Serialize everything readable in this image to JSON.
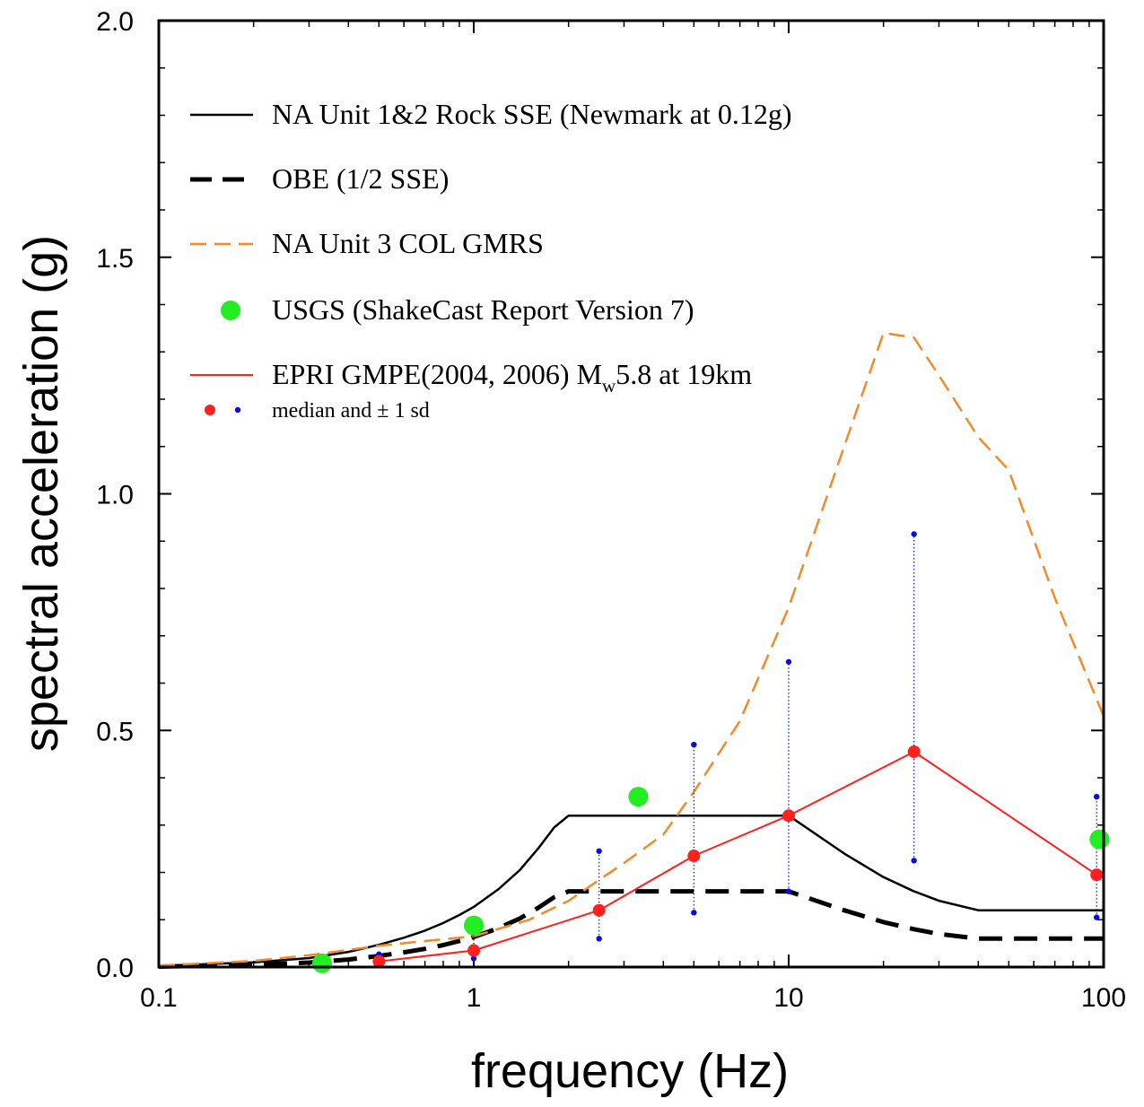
{
  "chart_data": {
    "type": "line",
    "title": "",
    "xlabel": "frequency (Hz)",
    "ylabel": "spectral acceleration (g)",
    "xscale": "log",
    "xlim": [
      0.1,
      100
    ],
    "ylim": [
      0.0,
      2.0
    ],
    "x_ticks": [
      0.1,
      1,
      10,
      100
    ],
    "x_tick_labels": [
      "0.1",
      "1",
      "10",
      "100"
    ],
    "y_ticks": [
      0.0,
      0.5,
      1.0,
      1.5,
      2.0
    ],
    "y_tick_labels": [
      "0.0",
      "0.5",
      "1.0",
      "1.5",
      "2.0"
    ],
    "grid": false,
    "legend_position": "top-left",
    "legend": [
      {
        "label": "NA Unit 1&2 Rock SSE (Newmark at 0.12g)",
        "style": "solid-black"
      },
      {
        "label": "OBE (1/2 SSE)",
        "style": "dashed-black"
      },
      {
        "label": "NA Unit 3 COL GMRS",
        "style": "dashed-orange"
      },
      {
        "label": "USGS (ShakeCast Report Version 7)",
        "style": "green-dot"
      },
      {
        "label_main": "EPRI GMPE(2004, 2006) M",
        "label_sub": "w",
        "label_rest": "5.8 at 19km",
        "style": "solid-red"
      },
      {
        "label": "median and ± 1 sd",
        "style": "red-blue-dots"
      }
    ],
    "colors": {
      "sse": "#000000",
      "obe": "#000000",
      "gmrs": "#f08c28",
      "usgs": "#22ee22",
      "epri": "#ff2020",
      "sd": "#0a0ae6"
    },
    "series": [
      {
        "key": "sse",
        "x": [
          0.1,
          0.2,
          0.3,
          0.4,
          0.5,
          0.6,
          0.7,
          0.8,
          0.9,
          1.0,
          1.2,
          1.4,
          1.6,
          1.8,
          2.0,
          10.0,
          15.0,
          20.0,
          25.0,
          30.0,
          40.0,
          100.0
        ],
        "y": [
          0.002,
          0.01,
          0.019,
          0.032,
          0.047,
          0.062,
          0.077,
          0.093,
          0.11,
          0.127,
          0.165,
          0.205,
          0.25,
          0.295,
          0.32,
          0.32,
          0.24,
          0.19,
          0.16,
          0.14,
          0.12,
          0.12
        ]
      },
      {
        "key": "obe",
        "x": [
          0.1,
          0.2,
          0.3,
          0.4,
          0.5,
          0.6,
          0.7,
          0.8,
          0.9,
          1.0,
          1.2,
          1.4,
          1.6,
          1.8,
          2.0,
          10.0,
          15.0,
          20.0,
          25.0,
          30.0,
          40.0,
          100.0
        ],
        "y": [
          0.001,
          0.005,
          0.0095,
          0.016,
          0.0235,
          0.031,
          0.0385,
          0.0465,
          0.055,
          0.0635,
          0.0825,
          0.1025,
          0.125,
          0.1475,
          0.16,
          0.16,
          0.12,
          0.095,
          0.08,
          0.07,
          0.06,
          0.06
        ]
      },
      {
        "key": "gmrs",
        "x": [
          0.1,
          0.2,
          0.3,
          0.5,
          0.7,
          1.0,
          1.5,
          2.0,
          3.0,
          4.0,
          5.0,
          7.0,
          10.0,
          15.0,
          20.0,
          25.0,
          30.0,
          40.0,
          50.0,
          70.0,
          100.0
        ],
        "y": [
          0.003,
          0.013,
          0.025,
          0.045,
          0.055,
          0.065,
          0.1,
          0.14,
          0.22,
          0.28,
          0.37,
          0.52,
          0.76,
          1.1,
          1.34,
          1.33,
          1.25,
          1.12,
          1.05,
          0.78,
          0.53
        ]
      },
      {
        "key": "epri",
        "x": [
          0.5,
          1.0,
          2.5,
          5.0,
          10.0,
          25.0,
          95.0
        ],
        "y": [
          0.012,
          0.035,
          0.12,
          0.235,
          0.32,
          0.455,
          0.195
        ]
      }
    ],
    "epri_points": [
      {
        "x": 0.5,
        "median": 0.012,
        "minus_sd": 0.005,
        "plus_sd": 0.027
      },
      {
        "x": 1.0,
        "median": 0.035,
        "minus_sd": 0.018,
        "plus_sd": 0.073
      },
      {
        "x": 2.5,
        "median": 0.12,
        "minus_sd": 0.06,
        "plus_sd": 0.245
      },
      {
        "x": 5.0,
        "median": 0.235,
        "minus_sd": 0.115,
        "plus_sd": 0.47
      },
      {
        "x": 10.0,
        "median": 0.32,
        "minus_sd": 0.16,
        "plus_sd": 0.645
      },
      {
        "x": 25.0,
        "median": 0.455,
        "minus_sd": 0.225,
        "plus_sd": 0.915
      },
      {
        "x": 95.0,
        "median": 0.195,
        "minus_sd": 0.105,
        "plus_sd": 0.36
      }
    ],
    "usgs_points": [
      {
        "x": 0.33,
        "y": 0.008
      },
      {
        "x": 1.0,
        "y": 0.088
      },
      {
        "x": 3.33,
        "y": 0.36
      },
      {
        "x": 97.0,
        "y": 0.27
      }
    ]
  }
}
